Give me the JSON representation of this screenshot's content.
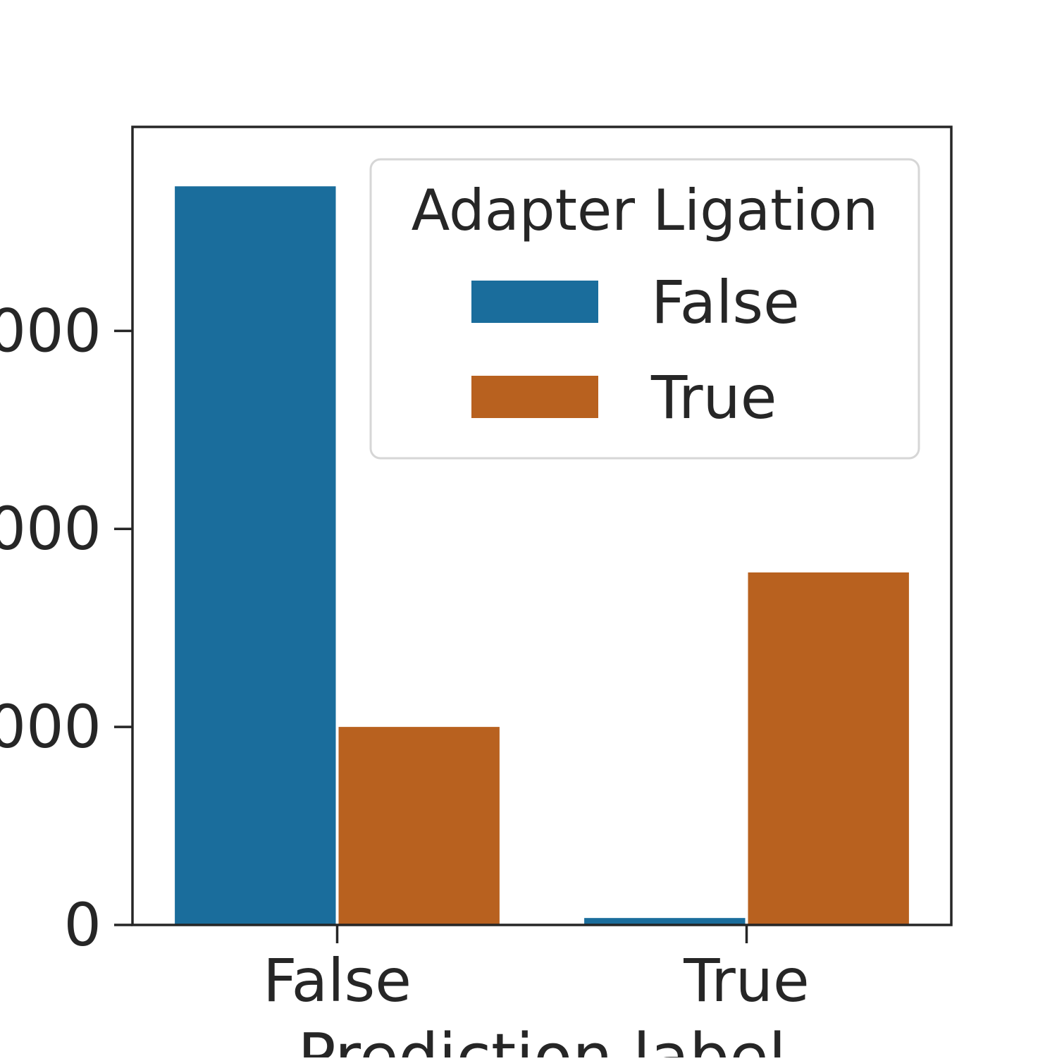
{
  "chart_data": {
    "type": "bar",
    "categories": [
      "False",
      "True"
    ],
    "series": [
      {
        "name": "False",
        "values": [
          3730,
          35
        ],
        "color": "#1a6d9c"
      },
      {
        "name": "True",
        "values": [
          1000,
          1780
        ],
        "color": "#b8611f"
      }
    ],
    "xlabel": "Prediction label",
    "ylabel": "",
    "ylim": [
      0,
      4030
    ],
    "yticks": [
      0,
      1000,
      2000,
      3000
    ],
    "ytick_labels": [
      "0",
      "000",
      "000",
      "000"
    ],
    "legend": {
      "title": "Adapter Ligation",
      "placement": "top-right"
    },
    "grid": false
  }
}
